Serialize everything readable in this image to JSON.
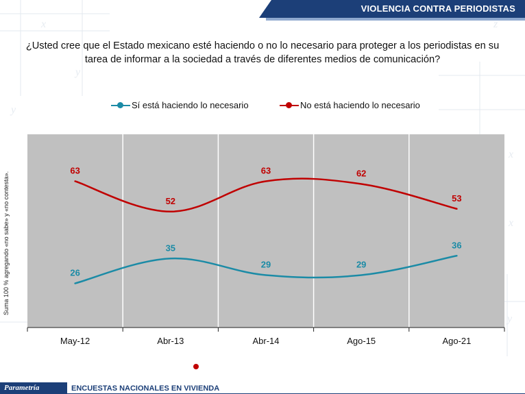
{
  "header": {
    "section_title": "VIOLENCIA CONTRA PERIODISTAS"
  },
  "question": "¿Usted cree que el Estado mexicano esté haciendo o no lo necesario para proteger a los periodistas en su tarea de informar a la sociedad a través de diferentes medios de comunicación?",
  "side_note": "Suma 100 % agregando «no sabe» y «no contesta».",
  "footer": {
    "brand": "Parametría",
    "label": "ENCUESTAS NACIONALES EN VIVIENDA"
  },
  "colors": {
    "series_si": "#1b8ba6",
    "series_no": "#c00000",
    "plot_bg": "#c0c0c0",
    "brand": "#1c3f78"
  },
  "chart_data": {
    "type": "line",
    "categories": [
      "May-12",
      "Abr-13",
      "Abr-14",
      "Ago-15",
      "Ago-21"
    ],
    "series": [
      {
        "name": "Sí está haciendo lo necesario",
        "values": [
          26,
          35,
          29,
          29,
          36
        ],
        "color": "#1b8ba6"
      },
      {
        "name": "No está haciendo lo necesario",
        "values": [
          63,
          52,
          63,
          62,
          53
        ],
        "color": "#c00000"
      }
    ],
    "legend_position": "top",
    "grid": true
  }
}
